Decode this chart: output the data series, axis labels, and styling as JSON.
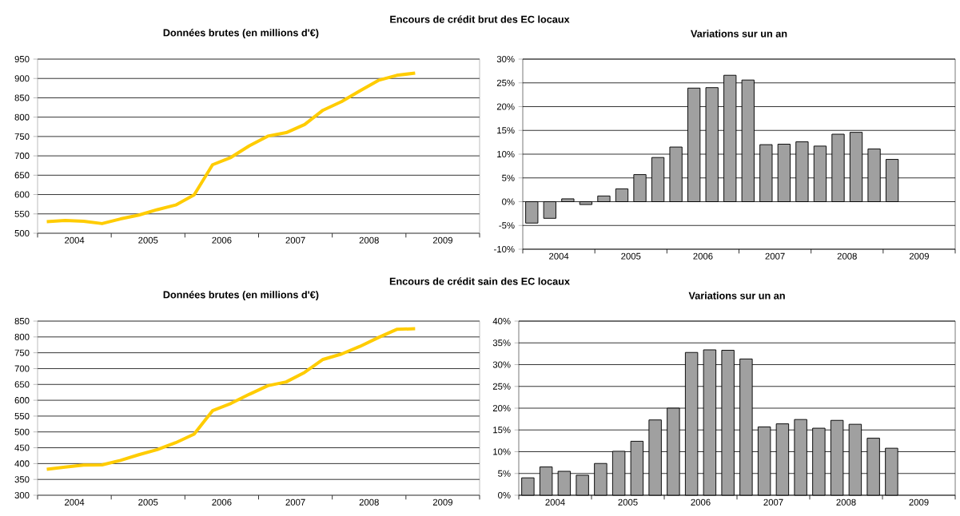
{
  "chart_data": [
    {
      "type": "line",
      "title": "Encours de crédit brut des EC locaux",
      "subtitle": "Données brutes (en millions d'€)",
      "color": "#ffcc00",
      "x": [
        2004.125,
        2004.375,
        2004.625,
        2004.875,
        2005.125,
        2005.375,
        2005.625,
        2005.875,
        2006.125,
        2006.375,
        2006.625,
        2006.875,
        2007.125,
        2007.375,
        2007.625,
        2007.875,
        2008.125,
        2008.375,
        2008.625,
        2008.875,
        2009.125
      ],
      "values": [
        530,
        533,
        531,
        525,
        537,
        547,
        561,
        573,
        599,
        677,
        696,
        726,
        751,
        760,
        781,
        818,
        840,
        868,
        895,
        908,
        914
      ],
      "xlim": [
        2004,
        2010
      ],
      "xticks": [
        {
          "value": 2004,
          "label": null
        },
        {
          "value": 2005,
          "label": null
        },
        {
          "value": 2006,
          "label": null
        },
        {
          "value": 2007,
          "label": null
        },
        {
          "value": 2008,
          "label": null
        },
        {
          "value": 2009,
          "label": null
        },
        {
          "value": 2010,
          "label": null
        },
        {
          "value": 2004.5,
          "label": "2004"
        },
        {
          "value": 2005.5,
          "label": "2005"
        },
        {
          "value": 2006.5,
          "label": "2006"
        },
        {
          "value": 2007.5,
          "label": "2007"
        },
        {
          "value": 2008.5,
          "label": "2008"
        },
        {
          "value": 2009.5,
          "label": "2009"
        }
      ],
      "ylim": [
        500,
        950
      ],
      "yticks": [
        500,
        550,
        600,
        650,
        700,
        750,
        800,
        850,
        900,
        950
      ],
      "grid": "y"
    },
    {
      "type": "bar",
      "title": "Variations sur un an",
      "color": "#a0a0a0",
      "x": [
        2004.125,
        2004.375,
        2004.625,
        2004.875,
        2005.125,
        2005.375,
        2005.625,
        2005.875,
        2006.125,
        2006.375,
        2006.625,
        2006.875,
        2007.125,
        2007.375,
        2007.625,
        2007.875,
        2008.125,
        2008.375,
        2008.625,
        2008.875,
        2009.125
      ],
      "values": [
        -4.5,
        -3.5,
        0.6,
        -0.6,
        1.2,
        2.7,
        5.7,
        9.3,
        11.5,
        23.9,
        24.0,
        26.6,
        25.6,
        12.0,
        12.1,
        12.6,
        11.7,
        14.2,
        14.6,
        11.1,
        8.9
      ],
      "xlim": [
        2004,
        2010
      ],
      "xticks": [
        {
          "value": 2004,
          "label": null
        },
        {
          "value": 2005,
          "label": null
        },
        {
          "value": 2006,
          "label": null
        },
        {
          "value": 2007,
          "label": null
        },
        {
          "value": 2008,
          "label": null
        },
        {
          "value": 2009,
          "label": null
        },
        {
          "value": 2010,
          "label": null
        },
        {
          "value": 2004.5,
          "label": "2004"
        },
        {
          "value": 2005.5,
          "label": "2005"
        },
        {
          "value": 2006.5,
          "label": "2006"
        },
        {
          "value": 2007.5,
          "label": "2007"
        },
        {
          "value": 2008.5,
          "label": "2008"
        },
        {
          "value": 2009.5,
          "label": "2009"
        }
      ],
      "ylim": [
        -10,
        30
      ],
      "yticks": [
        {
          "value": -10,
          "label": "-10%"
        },
        {
          "value": -5,
          "label": "-5%"
        },
        {
          "value": 0,
          "label": "0%"
        },
        {
          "value": 5,
          "label": "5%"
        },
        {
          "value": 10,
          "label": "10%"
        },
        {
          "value": 15,
          "label": "15%"
        },
        {
          "value": 20,
          "label": "20%"
        },
        {
          "value": 25,
          "label": "25%"
        },
        {
          "value": 30,
          "label": "30%"
        }
      ],
      "grid": "y"
    },
    {
      "type": "line",
      "title": "Encours de crédit sain des EC locaux",
      "subtitle": "Données brutes (en millions d'€)",
      "color": "#ffcc00",
      "x": [
        2004.125,
        2004.375,
        2004.625,
        2004.875,
        2005.125,
        2005.375,
        2005.625,
        2005.875,
        2006.125,
        2006.375,
        2006.625,
        2006.875,
        2007.125,
        2007.375,
        2007.625,
        2007.875,
        2008.125,
        2008.375,
        2008.625,
        2008.875,
        2009.125
      ],
      "values": [
        382,
        389,
        395,
        396,
        410,
        428,
        444,
        466,
        493,
        567,
        590,
        619,
        646,
        658,
        688,
        729,
        746,
        770,
        798,
        824,
        826
      ],
      "xlim": [
        2004,
        2010
      ],
      "xticks": [
        {
          "value": 2004,
          "label": null
        },
        {
          "value": 2005,
          "label": null
        },
        {
          "value": 2006,
          "label": null
        },
        {
          "value": 2007,
          "label": null
        },
        {
          "value": 2008,
          "label": null
        },
        {
          "value": 2009,
          "label": null
        },
        {
          "value": 2010,
          "label": null
        },
        {
          "value": 2004.5,
          "label": "2004"
        },
        {
          "value": 2005.5,
          "label": "2005"
        },
        {
          "value": 2006.5,
          "label": "2006"
        },
        {
          "value": 2007.5,
          "label": "2007"
        },
        {
          "value": 2008.5,
          "label": "2008"
        },
        {
          "value": 2009.5,
          "label": "2009"
        }
      ],
      "ylim": [
        300,
        850
      ],
      "yticks": [
        300,
        350,
        400,
        450,
        500,
        550,
        600,
        650,
        700,
        750,
        800,
        850
      ],
      "grid": "y"
    },
    {
      "type": "bar",
      "title": "Variations sur un an",
      "color": "#a0a0a0",
      "x": [
        2004.125,
        2004.375,
        2004.625,
        2004.875,
        2005.125,
        2005.375,
        2005.625,
        2005.875,
        2006.125,
        2006.375,
        2006.625,
        2006.875,
        2007.125,
        2007.375,
        2007.625,
        2007.875,
        2008.125,
        2008.375,
        2008.625,
        2008.875,
        2009.125
      ],
      "values": [
        4.0,
        6.5,
        5.5,
        4.6,
        7.3,
        10.1,
        12.4,
        17.3,
        20.0,
        32.8,
        33.4,
        33.3,
        31.3,
        15.7,
        16.4,
        17.4,
        15.4,
        17.2,
        16.3,
        13.1,
        10.8
      ],
      "xlim": [
        2004,
        2010
      ],
      "xticks": [
        {
          "value": 2004,
          "label": null
        },
        {
          "value": 2005,
          "label": null
        },
        {
          "value": 2006,
          "label": null
        },
        {
          "value": 2007,
          "label": null
        },
        {
          "value": 2008,
          "label": null
        },
        {
          "value": 2009,
          "label": null
        },
        {
          "value": 2010,
          "label": null
        },
        {
          "value": 2004.5,
          "label": "2004"
        },
        {
          "value": 2005.5,
          "label": "2005"
        },
        {
          "value": 2006.5,
          "label": "2006"
        },
        {
          "value": 2007.5,
          "label": "2007"
        },
        {
          "value": 2008.5,
          "label": "2008"
        },
        {
          "value": 2009.5,
          "label": "2009"
        }
      ],
      "ylim": [
        0,
        40
      ],
      "yticks": [
        {
          "value": 0,
          "label": "0%"
        },
        {
          "value": 5,
          "label": "5%"
        },
        {
          "value": 10,
          "label": "10%"
        },
        {
          "value": 15,
          "label": "15%"
        },
        {
          "value": 20,
          "label": "20%"
        },
        {
          "value": 25,
          "label": "25%"
        },
        {
          "value": 30,
          "label": "30%"
        },
        {
          "value": 35,
          "label": "35%"
        },
        {
          "value": 40,
          "label": "40%"
        }
      ],
      "grid": "y"
    }
  ]
}
